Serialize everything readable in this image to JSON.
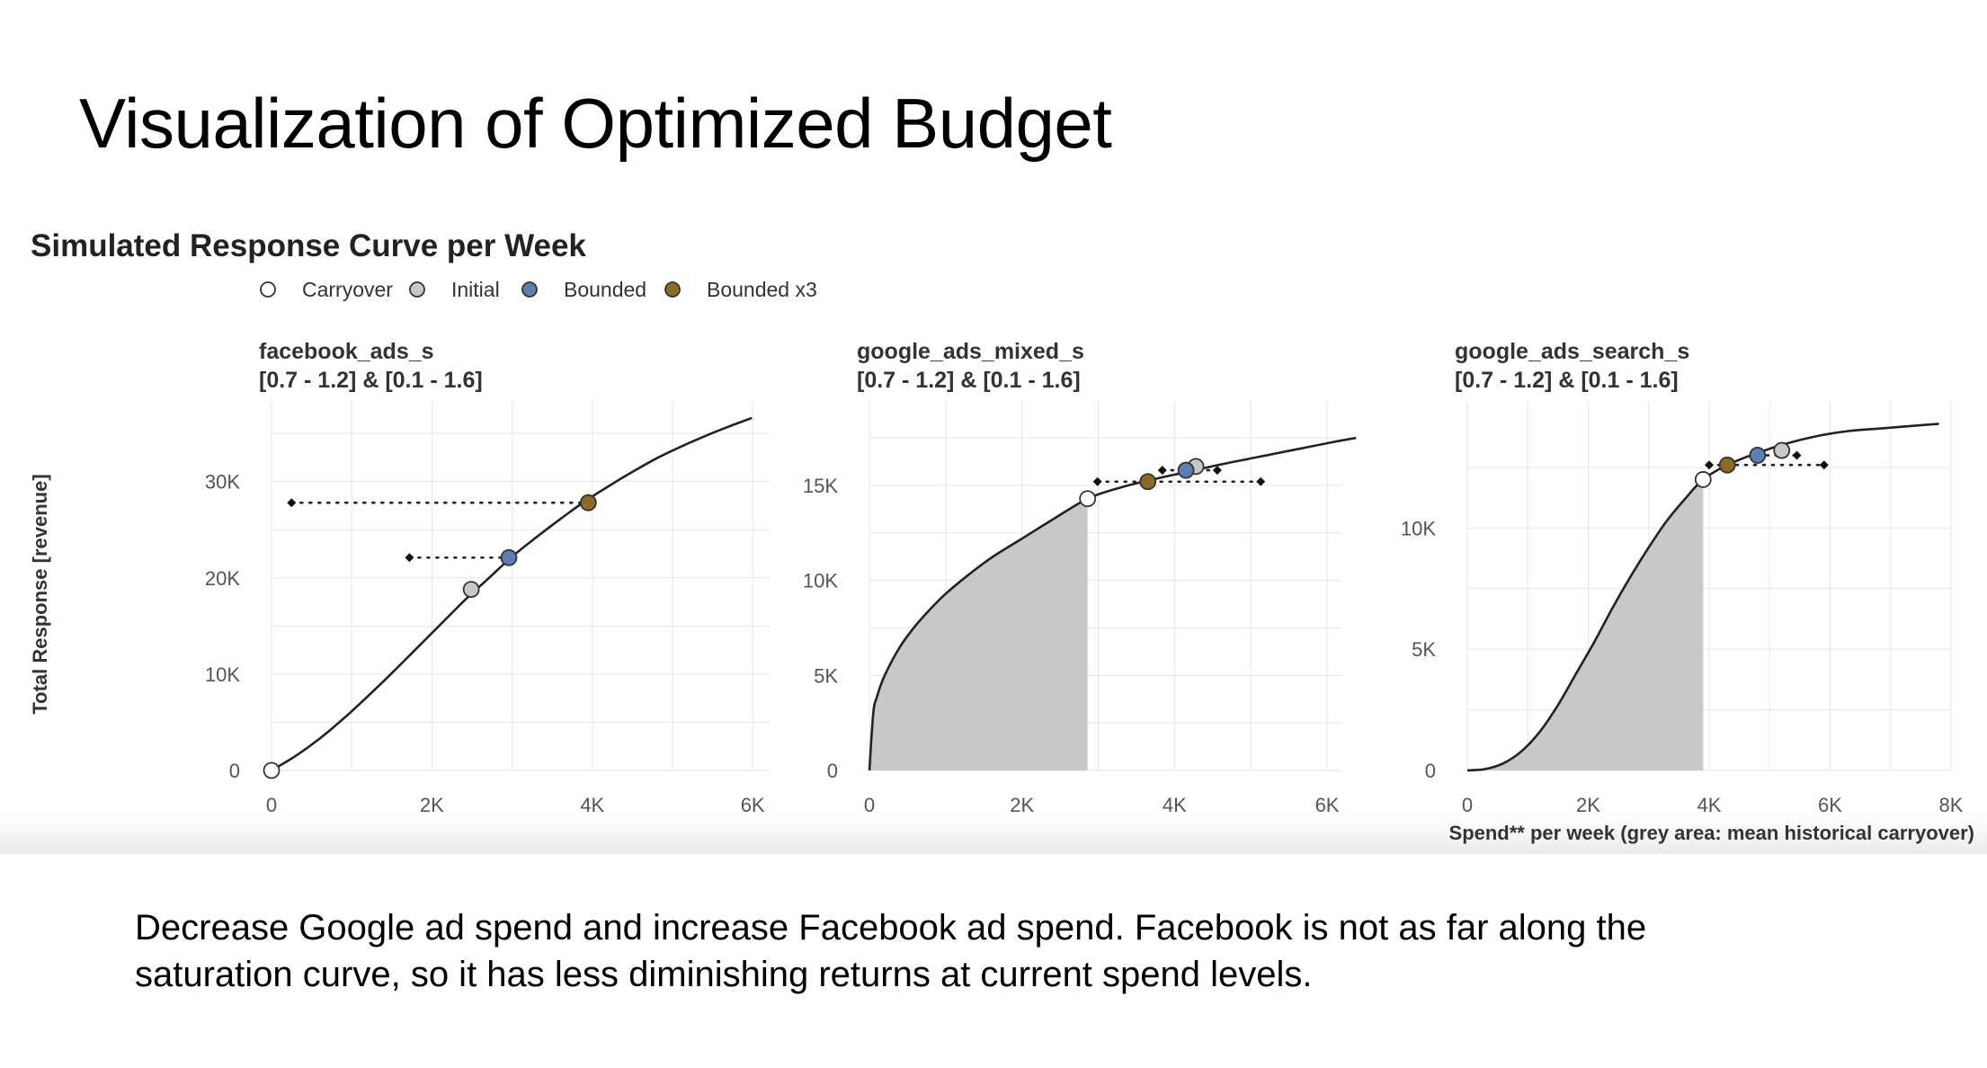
{
  "slide": {
    "title": "Visualization of Optimized Budget",
    "caption_lines": [
      "Decrease Google ad spend and increase Facebook ad spend. Facebook is not as far along the",
      "saturation curve, so it has less diminishing returns at current spend levels."
    ]
  },
  "chart_data": {
    "type": "line",
    "title": "Simulated Response Curve per Week",
    "ylabel": "Total Response [revenue]",
    "xlabel": "Spend** per week (grey area: mean historical carryover)",
    "legend": {
      "position": "top-left",
      "entries": [
        {
          "name": "Carryover",
          "color": "#ffffff"
        },
        {
          "name": "Initial",
          "color": "#c8c8c8"
        },
        {
          "name": "Bounded",
          "color": "#5b7fb2"
        },
        {
          "name": "Bounded x3",
          "color": "#8b6a2a"
        }
      ]
    },
    "colors": {
      "grey_area": "#c8c8c8",
      "curve": "#222222",
      "grid": "#e6e6e6"
    },
    "panels": [
      {
        "name": "facebook_ads_s",
        "subtitle": "[0.7 - 1.2] & [0.1 - 1.6]",
        "xlim": [
          0,
          6200
        ],
        "ylim": [
          0,
          36500
        ],
        "xticks": [
          0,
          2000,
          4000,
          6000
        ],
        "xtick_labels": [
          "0",
          "2K",
          "4K",
          "6K"
        ],
        "yticks": [
          0,
          10000,
          20000,
          30000
        ],
        "ytick_labels": [
          "0",
          "10K",
          "20K",
          "30K"
        ],
        "curve": {
          "x": [
            0,
            300,
            600,
            900,
            1200,
            1500,
            1800,
            2100,
            2400,
            2700,
            3000,
            3300,
            3600,
            3900,
            4200,
            4500,
            4800,
            5100,
            5400,
            5700,
            5990
          ],
          "y": [
            0,
            1500,
            3300,
            5400,
            7700,
            10100,
            12600,
            15100,
            17600,
            19900,
            22200,
            24200,
            26100,
            27900,
            29500,
            31000,
            32400,
            33600,
            34700,
            35700,
            36600
          ]
        },
        "carryover_area_x": 0,
        "points": {
          "carryover": {
            "x": 0,
            "y": 0
          },
          "initial": {
            "x": 2490,
            "y": 18800
          },
          "bounded": {
            "x": 2960,
            "y": 22100
          },
          "bounded_x3": {
            "x": 3950,
            "y": 27800
          }
        },
        "bounds": {
          "bounded": {
            "low": 1720,
            "high": 2960,
            "y": 22100
          },
          "bounded_x3": {
            "low": 250,
            "high": 3950,
            "y": 27800
          }
        }
      },
      {
        "name": "google_ads_mixed_s",
        "subtitle": "[0.7 - 1.2] & [0.1 - 1.6]",
        "xlim": [
          0,
          6200
        ],
        "ylim": [
          0,
          18500
        ],
        "xticks": [
          0,
          2000,
          4000,
          6000
        ],
        "xtick_labels": [
          "0",
          "2K",
          "4K",
          "6K"
        ],
        "yticks": [
          0,
          5000,
          10000,
          15000
        ],
        "ytick_labels": [
          "0",
          "5K",
          "10K",
          "15K"
        ],
        "curve": {
          "x": [
            0,
            50,
            100,
            200,
            400,
            600,
            800,
            1000,
            1300,
            1600,
            2000,
            2400,
            2860,
            3300,
            3700,
            4150,
            4600,
            5100,
            5600,
            6100,
            6380
          ],
          "y": [
            0,
            3000,
            3900,
            5000,
            6500,
            7600,
            8500,
            9300,
            10300,
            11200,
            12200,
            13200,
            14300,
            14900,
            15300,
            15700,
            16100,
            16500,
            16900,
            17300,
            17500
          ]
        },
        "carryover_area_x": 2860,
        "points": {
          "carryover": {
            "x": 2860,
            "y": 14300
          },
          "initial": {
            "x": 4280,
            "y": 16000
          },
          "bounded": {
            "x": 4150,
            "y": 15800
          },
          "bounded_x3": {
            "x": 3650,
            "y": 15200
          }
        },
        "bounds": {
          "bounded": {
            "low": 3840,
            "high": 4560,
            "y": 15800
          },
          "bounded_x3": {
            "low": 2990,
            "high": 5130,
            "y": 15200
          }
        }
      },
      {
        "name": "google_ads_search_s",
        "subtitle": "[0.7 - 1.2] & [0.1 - 1.6]",
        "xlim": [
          0,
          8000
        ],
        "ylim": [
          0,
          14500
        ],
        "xticks": [
          0,
          2000,
          4000,
          6000,
          8000
        ],
        "xtick_labels": [
          "0",
          "2K",
          "4K",
          "6K",
          "8K"
        ],
        "yticks": [
          0,
          5000,
          10000
        ],
        "ytick_labels": [
          "0",
          "5K",
          "10K"
        ],
        "curve": {
          "x": [
            0,
            300,
            600,
            900,
            1200,
            1500,
            1800,
            2100,
            2400,
            2700,
            3000,
            3300,
            3600,
            3900,
            4300,
            4800,
            5300,
            5800,
            6300,
            6800,
            7300,
            7800
          ],
          "y": [
            0,
            60,
            300,
            800,
            1600,
            2700,
            4000,
            5300,
            6700,
            8000,
            9200,
            10300,
            11200,
            12000,
            12600,
            13100,
            13500,
            13800,
            14000,
            14100,
            14200,
            14300
          ]
        },
        "carryover_area_x": 3900,
        "points": {
          "carryover": {
            "x": 3900,
            "y": 12000
          },
          "initial": {
            "x": 5200,
            "y": 13200
          },
          "bounded": {
            "x": 4800,
            "y": 13000
          },
          "bounded_x3": {
            "x": 4300,
            "y": 12600
          }
        },
        "bounds": {
          "bounded": {
            "low": 4800,
            "high": 5450,
            "y": 13000
          },
          "bounded_x3": {
            "low": 4000,
            "high": 5900,
            "y": 12600
          }
        }
      }
    ]
  }
}
